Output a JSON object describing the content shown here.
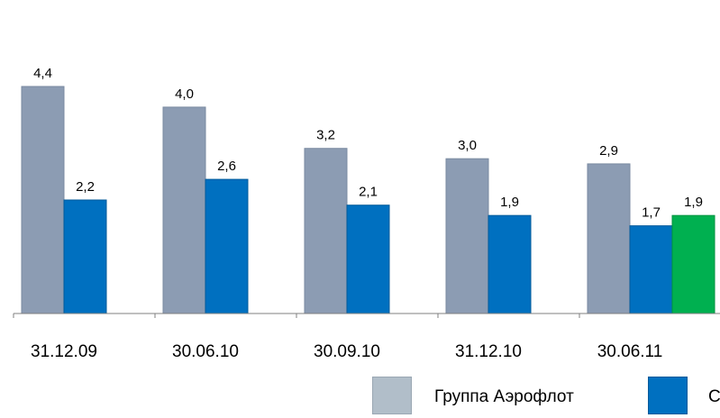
{
  "chart_data": {
    "type": "bar",
    "categories": [
      "31.12.09",
      "30.06.10",
      "30.09.10",
      "31.12.10",
      "30.06.11"
    ],
    "series": [
      {
        "name": "Группа Аэрофлот",
        "values": [
          4.4,
          4.0,
          3.2,
          3.0,
          2.9
        ],
        "labels": [
          "4,4",
          "4,0",
          "3,2",
          "3,0",
          "2,9"
        ]
      },
      {
        "name": "С",
        "values": [
          2.2,
          2.6,
          2.1,
          1.9,
          1.7
        ],
        "labels": [
          "2,2",
          "2,6",
          "2,1",
          "1,9",
          "1,7"
        ]
      },
      {
        "name": "",
        "values": [
          null,
          null,
          null,
          null,
          1.9
        ],
        "labels": [
          "",
          "",
          "",
          "",
          "1,9"
        ]
      }
    ],
    "colors": {
      "series_0": "#8C9CB3",
      "series_1": "#0070C0",
      "series_2": "#00B050",
      "legend_0": "#B1BEC9"
    },
    "title": "",
    "xlabel": "",
    "ylabel": "",
    "ylim": [
      0,
      4.8
    ],
    "grid": false,
    "legend_position": "bottom"
  },
  "legend": {
    "items": [
      {
        "label": "Группа Аэрофлот",
        "color": "#B1BEC9"
      },
      {
        "label": "С",
        "color": "#0070C0"
      }
    ]
  }
}
